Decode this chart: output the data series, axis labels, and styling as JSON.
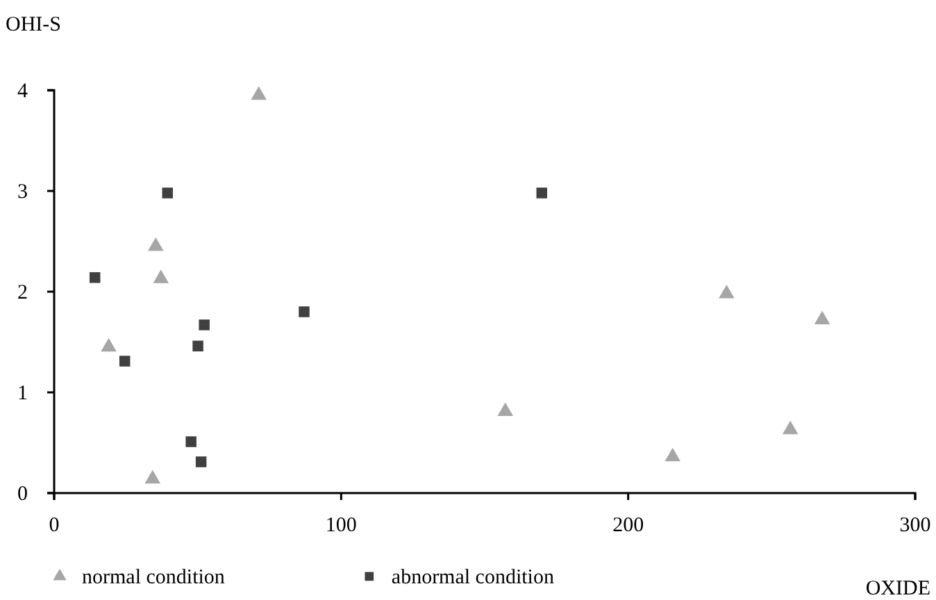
{
  "chart_data": {
    "type": "scatter",
    "xlabel": "OXIDE",
    "ylabel": "OHI-S",
    "xlim": [
      0,
      300
    ],
    "xticks": [
      0,
      100,
      200,
      300
    ],
    "ylim": [
      0,
      4
    ],
    "yticks": [
      0,
      1,
      2,
      3,
      4
    ],
    "grid": false,
    "legend": "bottom",
    "series": [
      {
        "name": "normal condition",
        "color": "#a6a6a6",
        "marker": "triangle",
        "x": [
          71.3,
          35.4,
          37.2,
          19.0,
          34.3,
          157.2,
          215.5,
          234.3,
          256.5,
          267.6
        ],
        "values": [
          3.95,
          2.45,
          2.13,
          1.45,
          0.14,
          0.81,
          0.36,
          1.98,
          0.63,
          1.72
        ]
      },
      {
        "name": "abnormal condition",
        "color": "#404040",
        "marker": "square",
        "x": [
          39.5,
          14.2,
          52.3,
          50.1,
          24.6,
          87.1,
          47.7,
          51.2,
          169.9
        ],
        "values": [
          2.98,
          2.14,
          1.67,
          1.46,
          1.31,
          1.8,
          0.51,
          0.31,
          2.98
        ]
      }
    ]
  }
}
